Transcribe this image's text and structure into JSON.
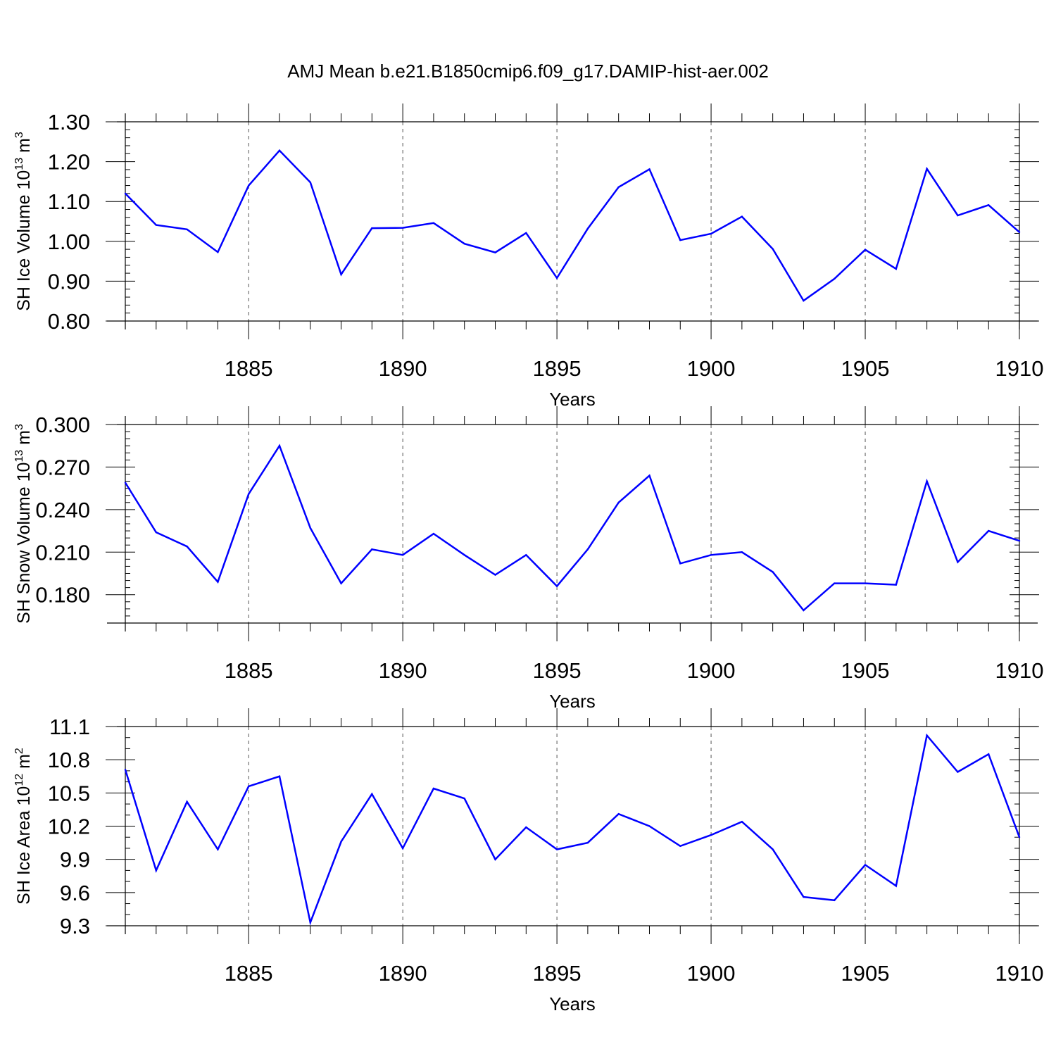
{
  "title": "AMJ Mean b.e21.B1850cmip6.f09_g17.DAMIP-hist-aer.002",
  "colors": {
    "line": "#0000ff",
    "axis": "#000000",
    "grid": "#555555"
  },
  "chart_data": [
    {
      "type": "line",
      "ylabel": "SH Ice Volume 10",
      "ylabel_exp": "13",
      "ylabel_unit": " m",
      "ylabel_unit_exp": "3",
      "xlabel": "Years",
      "xlim": [
        1881,
        1910
      ],
      "ylim": [
        0.8,
        1.3
      ],
      "xticks": [
        1885,
        1890,
        1895,
        1900,
        1905,
        1910
      ],
      "xtick_labels": [
        "1885",
        "1890",
        "1895",
        "1900",
        "1905",
        "1910"
      ],
      "yticks": [
        0.8,
        0.9,
        1.0,
        1.1,
        1.2,
        1.3
      ],
      "ytick_labels": [
        "0.80",
        "0.90",
        "1.00",
        "1.10",
        "1.20",
        "1.30"
      ],
      "yminor_step": 0.02,
      "grid": "dashed vertical at major x ticks",
      "x": [
        1881,
        1882,
        1883,
        1884,
        1885,
        1886,
        1887,
        1888,
        1889,
        1890,
        1891,
        1892,
        1893,
        1894,
        1895,
        1896,
        1897,
        1898,
        1899,
        1900,
        1901,
        1902,
        1903,
        1904,
        1905,
        1906,
        1907,
        1908,
        1909,
        1910
      ],
      "y": [
        1.12,
        1.041,
        1.03,
        0.973,
        1.14,
        1.228,
        1.148,
        0.917,
        1.033,
        1.034,
        1.046,
        0.994,
        0.972,
        1.021,
        0.908,
        1.032,
        1.136,
        1.181,
        1.003,
        1.019,
        1.062,
        0.981,
        0.851,
        0.906,
        0.979,
        0.931,
        1.182,
        1.065,
        1.091,
        1.023
      ]
    },
    {
      "type": "line",
      "ylabel": "SH Snow Volume 10",
      "ylabel_exp": "13",
      "ylabel_unit": " m",
      "ylabel_unit_exp": "3",
      "xlabel": "Years",
      "xlim": [
        1881,
        1910
      ],
      "ylim": [
        0.16,
        0.3
      ],
      "xticks": [
        1885,
        1890,
        1895,
        1900,
        1905,
        1910
      ],
      "xtick_labels": [
        "1885",
        "1890",
        "1895",
        "1900",
        "1905",
        "1910"
      ],
      "yticks": [
        0.18,
        0.21,
        0.24,
        0.27,
        0.3
      ],
      "ytick_labels": [
        "0.180",
        "0.210",
        "0.240",
        "0.270",
        "0.300"
      ],
      "yminor_step": 0.005,
      "grid": "dashed vertical at major x ticks",
      "x": [
        1881,
        1882,
        1883,
        1884,
        1885,
        1886,
        1887,
        1888,
        1889,
        1890,
        1891,
        1892,
        1893,
        1894,
        1895,
        1896,
        1897,
        1898,
        1899,
        1900,
        1901,
        1902,
        1903,
        1904,
        1905,
        1906,
        1907,
        1908,
        1909,
        1910
      ],
      "y": [
        0.259,
        0.224,
        0.214,
        0.189,
        0.251,
        0.285,
        0.227,
        0.188,
        0.212,
        0.208,
        0.223,
        0.208,
        0.194,
        0.208,
        0.186,
        0.212,
        0.245,
        0.264,
        0.202,
        0.208,
        0.21,
        0.196,
        0.169,
        0.188,
        0.188,
        0.187,
        0.26,
        0.203,
        0.225,
        0.218
      ]
    },
    {
      "type": "line",
      "ylabel": "SH Ice Area 10",
      "ylabel_exp": "12",
      "ylabel_unit": " m",
      "ylabel_unit_exp": "2",
      "xlabel": "Years",
      "xlim": [
        1881,
        1910
      ],
      "ylim": [
        9.3,
        11.1
      ],
      "xticks": [
        1885,
        1890,
        1895,
        1900,
        1905,
        1910
      ],
      "xtick_labels": [
        "1885",
        "1890",
        "1895",
        "1900",
        "1905",
        "1910"
      ],
      "yticks": [
        9.3,
        9.6,
        9.9,
        10.2,
        10.5,
        10.8,
        11.1
      ],
      "ytick_labels": [
        "9.3",
        "9.6",
        "9.9",
        "10.2",
        "10.5",
        "10.8",
        "11.1"
      ],
      "yminor_step": 0.1,
      "grid": "dashed vertical at major x ticks",
      "x": [
        1881,
        1882,
        1883,
        1884,
        1885,
        1886,
        1887,
        1888,
        1889,
        1890,
        1891,
        1892,
        1893,
        1894,
        1895,
        1896,
        1897,
        1898,
        1899,
        1900,
        1901,
        1902,
        1903,
        1904,
        1905,
        1906,
        1907,
        1908,
        1909,
        1910
      ],
      "y": [
        10.71,
        9.8,
        10.42,
        9.99,
        10.56,
        10.65,
        9.33,
        10.06,
        10.49,
        10.0,
        10.54,
        10.45,
        9.9,
        10.19,
        9.99,
        10.05,
        10.31,
        10.2,
        10.02,
        10.12,
        10.24,
        9.99,
        9.56,
        9.53,
        9.85,
        9.66,
        11.02,
        10.69,
        10.85,
        10.1
      ]
    }
  ]
}
